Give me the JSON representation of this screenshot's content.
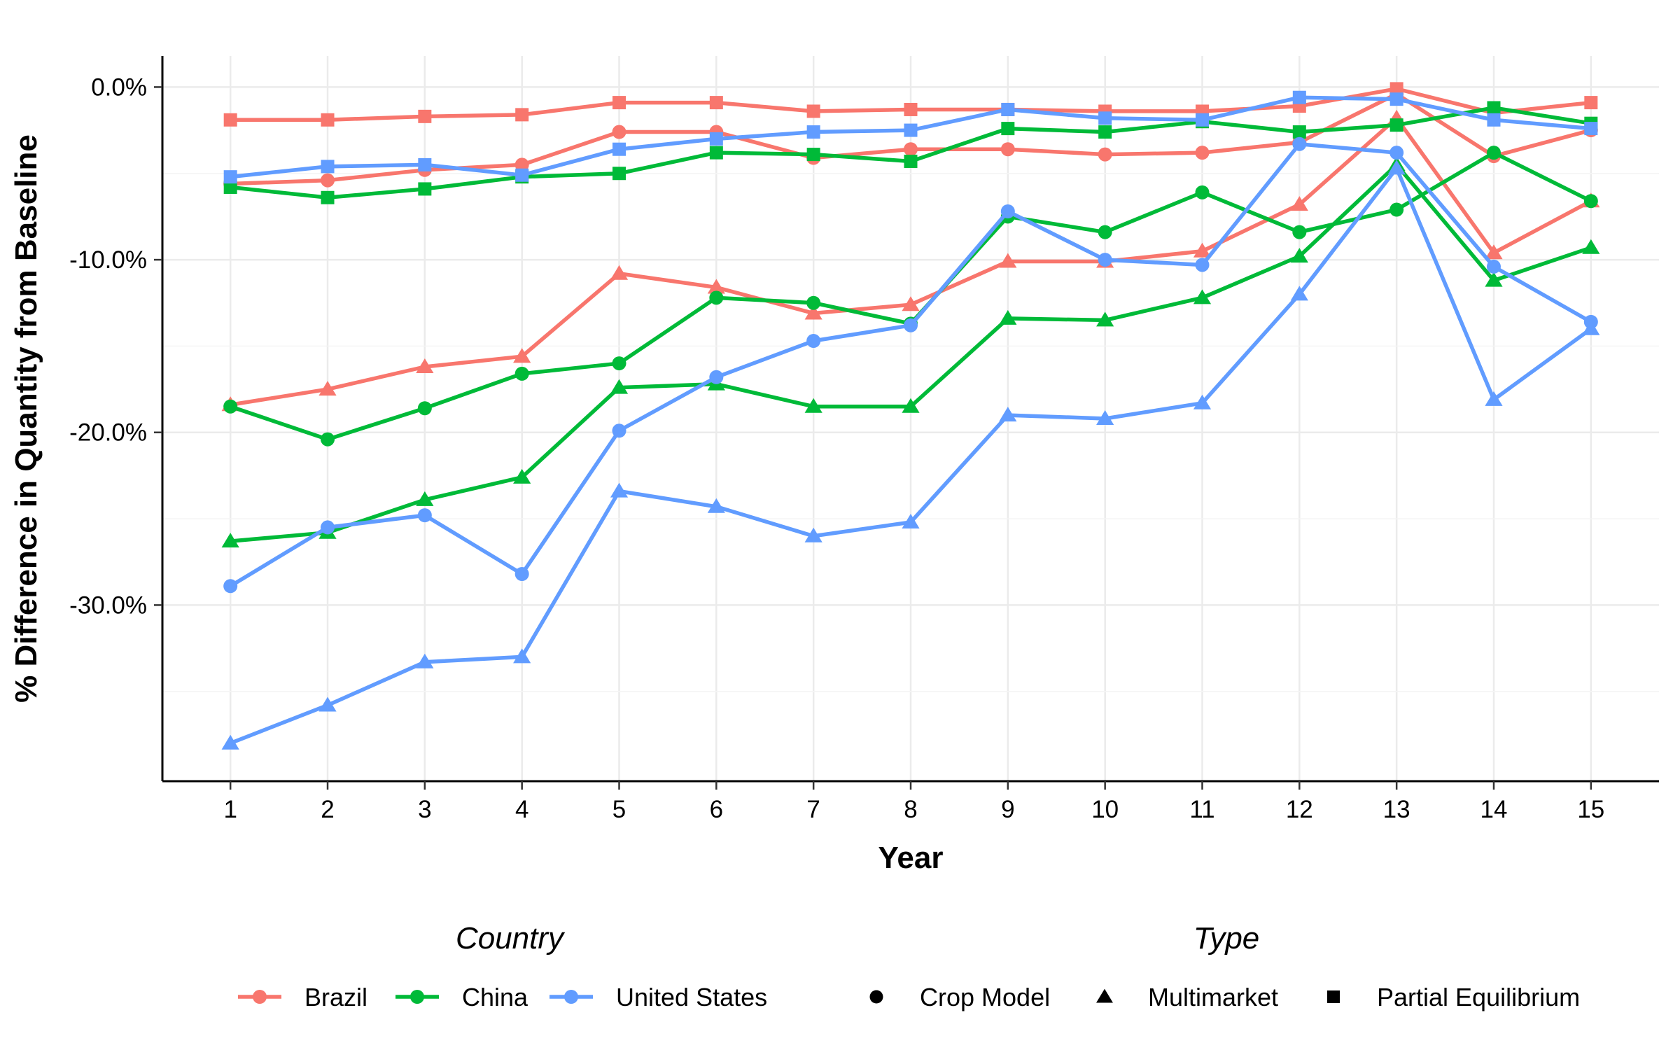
{
  "chart_data": {
    "type": "line",
    "xlabel": "Year",
    "ylabel": "% Difference in Quantity from Baseline",
    "x": [
      1,
      2,
      3,
      4,
      5,
      6,
      7,
      8,
      9,
      10,
      11,
      12,
      13,
      14,
      15
    ],
    "xlim": [
      0.3,
      15.7
    ],
    "ylim": [
      -40.2,
      1.8
    ],
    "y_ticks": [
      0,
      -10,
      -20,
      -30
    ],
    "y_tick_labels": [
      "0.0%",
      "-10.0%",
      "-20.0%",
      "-30.0%"
    ],
    "grid": true,
    "legend": {
      "position": "bottom",
      "country_title": "Country",
      "type_title": "Type",
      "countries": [
        {
          "name": "Brazil",
          "color": "#F8766D"
        },
        {
          "name": "China",
          "color": "#00BA38"
        },
        {
          "name": "United States",
          "color": "#619CFF"
        }
      ],
      "types": [
        {
          "name": "Crop Model",
          "shape": "circle"
        },
        {
          "name": "Multimarket",
          "shape": "triangle"
        },
        {
          "name": "Partial Equilibrium",
          "shape": "square"
        }
      ]
    },
    "series": [
      {
        "country": "Brazil",
        "type": "Crop Model",
        "color": "#F8766D",
        "shape": "circle",
        "values": [
          -5.6,
          -5.4,
          -4.8,
          -4.5,
          -2.6,
          -2.6,
          -4.1,
          -3.6,
          -3.6,
          -3.9,
          -3.8,
          -3.2,
          -0.4,
          -4.0,
          -2.5
        ]
      },
      {
        "country": "Brazil",
        "type": "Multimarket",
        "color": "#F8766D",
        "shape": "triangle",
        "values": [
          -18.4,
          -17.5,
          -16.2,
          -15.6,
          -10.8,
          -11.6,
          -13.1,
          -12.6,
          -10.1,
          -10.1,
          -9.5,
          -6.8,
          -1.8,
          -9.6,
          -6.6
        ]
      },
      {
        "country": "Brazil",
        "type": "Partial Equilibrium",
        "color": "#F8766D",
        "shape": "square",
        "values": [
          -1.9,
          -1.9,
          -1.7,
          -1.6,
          -0.9,
          -0.9,
          -1.4,
          -1.3,
          -1.3,
          -1.4,
          -1.4,
          -1.1,
          -0.1,
          -1.5,
          -0.9
        ]
      },
      {
        "country": "China",
        "type": "Crop Model",
        "color": "#00BA38",
        "shape": "circle",
        "values": [
          -18.5,
          -20.4,
          -18.6,
          -16.6,
          -16.0,
          -12.2,
          -12.5,
          -13.7,
          -7.5,
          -8.4,
          -6.1,
          -8.4,
          -7.1,
          -3.8,
          -6.6
        ]
      },
      {
        "country": "China",
        "type": "Multimarket",
        "color": "#00BA38",
        "shape": "triangle",
        "values": [
          -26.3,
          -25.8,
          -23.9,
          -22.6,
          -17.4,
          -17.2,
          -18.5,
          -18.5,
          -13.4,
          -13.5,
          -12.2,
          -9.8,
          -4.5,
          -11.2,
          -9.3
        ]
      },
      {
        "country": "China",
        "type": "Partial Equilibrium",
        "color": "#00BA38",
        "shape": "square",
        "values": [
          -5.8,
          -6.4,
          -5.9,
          -5.2,
          -5.0,
          -3.8,
          -3.9,
          -4.3,
          -2.4,
          -2.6,
          -2.0,
          -2.6,
          -2.2,
          -1.2,
          -2.1
        ]
      },
      {
        "country": "United States",
        "type": "Crop Model",
        "color": "#619CFF",
        "shape": "circle",
        "values": [
          -28.9,
          -25.5,
          -24.8,
          -28.2,
          -19.9,
          -16.8,
          -14.7,
          -13.8,
          -7.2,
          -10.0,
          -10.3,
          -3.3,
          -3.8,
          -10.4,
          -13.6
        ]
      },
      {
        "country": "United States",
        "type": "Multimarket",
        "color": "#619CFF",
        "shape": "triangle",
        "values": [
          -38.0,
          -35.8,
          -33.3,
          -33.0,
          -23.4,
          -24.3,
          -26.0,
          -25.2,
          -19.0,
          -19.2,
          -18.3,
          -12.0,
          -4.7,
          -18.1,
          -14.0
        ]
      },
      {
        "country": "United States",
        "type": "Partial Equilibrium",
        "color": "#619CFF",
        "shape": "square",
        "values": [
          -5.2,
          -4.6,
          -4.5,
          -5.1,
          -3.6,
          -3.0,
          -2.6,
          -2.5,
          -1.3,
          -1.8,
          -1.9,
          -0.6,
          -0.7,
          -1.9,
          -2.4
        ]
      }
    ]
  }
}
